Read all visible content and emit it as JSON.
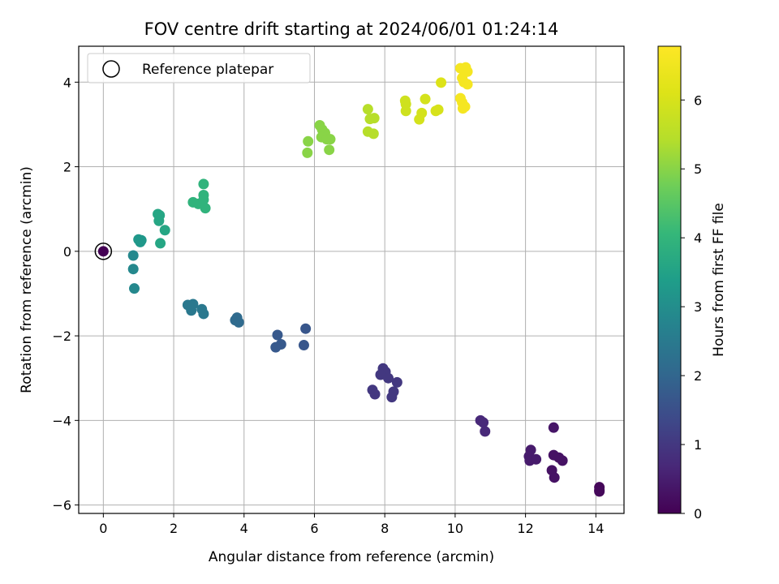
{
  "chart_data": {
    "type": "scatter",
    "title": "FOV centre drift starting at 2024/06/01 01:24:14",
    "xlabel": "Angular distance from reference (arcmin)",
    "ylabel": "Rotation from reference (arcmin)",
    "xlim": [
      -0.7,
      14.8
    ],
    "ylim": [
      -6.2,
      4.85
    ],
    "xticks": [
      0,
      2,
      4,
      6,
      8,
      10,
      12,
      14
    ],
    "yticks": [
      -6,
      -4,
      -2,
      0,
      2,
      4
    ],
    "grid": true,
    "legend": {
      "placement": "top-left",
      "entries": [
        "Reference platepar"
      ]
    },
    "colorbar": {
      "label": "Hours from first FF file",
      "range": [
        0,
        6.78
      ],
      "ticks": [
        0,
        1,
        2,
        3,
        4,
        5,
        6
      ],
      "colormap": "viridis"
    },
    "reference_point": {
      "x": 0,
      "y": 0,
      "marker": "open-circle"
    },
    "points": [
      {
        "x": 0,
        "y": 0,
        "c": 0.0
      },
      {
        "x": 14.1,
        "y": -5.58,
        "c": 0.1
      },
      {
        "x": 14.1,
        "y": -5.65,
        "c": 0.1
      },
      {
        "x": 14.1,
        "y": -5.68,
        "c": 0.12
      },
      {
        "x": 12.8,
        "y": -4.17,
        "c": 0.35
      },
      {
        "x": 12.75,
        "y": -5.18,
        "c": 0.3
      },
      {
        "x": 12.82,
        "y": -5.35,
        "c": 0.3
      },
      {
        "x": 12.8,
        "y": -4.82,
        "c": 0.3
      },
      {
        "x": 12.95,
        "y": -4.88,
        "c": 0.3
      },
      {
        "x": 13.05,
        "y": -4.95,
        "c": 0.3
      },
      {
        "x": 12.15,
        "y": -4.7,
        "c": 0.45
      },
      {
        "x": 12.1,
        "y": -4.85,
        "c": 0.45
      },
      {
        "x": 12.12,
        "y": -4.95,
        "c": 0.45
      },
      {
        "x": 12.3,
        "y": -4.92,
        "c": 0.45
      },
      {
        "x": 10.72,
        "y": -4.0,
        "c": 0.7
      },
      {
        "x": 10.8,
        "y": -4.05,
        "c": 0.7
      },
      {
        "x": 10.85,
        "y": -4.26,
        "c": 0.7
      },
      {
        "x": 7.95,
        "y": -2.77,
        "c": 1.0
      },
      {
        "x": 8.02,
        "y": -2.85,
        "c": 1.0
      },
      {
        "x": 7.88,
        "y": -2.92,
        "c": 1.0
      },
      {
        "x": 8.1,
        "y": -3.0,
        "c": 1.0
      },
      {
        "x": 8.35,
        "y": -3.1,
        "c": 1.0
      },
      {
        "x": 8.25,
        "y": -3.32,
        "c": 1.0
      },
      {
        "x": 8.2,
        "y": -3.45,
        "c": 1.0
      },
      {
        "x": 7.65,
        "y": -3.28,
        "c": 1.0
      },
      {
        "x": 7.72,
        "y": -3.38,
        "c": 1.0
      },
      {
        "x": 5.75,
        "y": -1.83,
        "c": 1.65
      },
      {
        "x": 5.7,
        "y": -2.22,
        "c": 1.65
      },
      {
        "x": 4.95,
        "y": -1.98,
        "c": 1.7
      },
      {
        "x": 5.05,
        "y": -2.2,
        "c": 1.7
      },
      {
        "x": 4.9,
        "y": -2.27,
        "c": 1.7
      },
      {
        "x": 3.8,
        "y": -1.57,
        "c": 2.1
      },
      {
        "x": 3.75,
        "y": -1.63,
        "c": 2.1
      },
      {
        "x": 3.85,
        "y": -1.68,
        "c": 2.1
      },
      {
        "x": 2.4,
        "y": -1.27,
        "c": 2.45
      },
      {
        "x": 2.55,
        "y": -1.25,
        "c": 2.45
      },
      {
        "x": 2.5,
        "y": -1.4,
        "c": 2.45
      },
      {
        "x": 2.8,
        "y": -1.37,
        "c": 2.45
      },
      {
        "x": 2.85,
        "y": -1.48,
        "c": 2.45
      },
      {
        "x": 0.85,
        "y": -0.1,
        "c": 2.85
      },
      {
        "x": 0.85,
        "y": -0.42,
        "c": 2.85
      },
      {
        "x": 0.88,
        "y": -0.88,
        "c": 2.85
      },
      {
        "x": 1.0,
        "y": 0.28,
        "c": 3.25
      },
      {
        "x": 1.08,
        "y": 0.26,
        "c": 3.25
      },
      {
        "x": 1.05,
        "y": 0.22,
        "c": 3.25
      },
      {
        "x": 1.55,
        "y": 0.88,
        "c": 3.6
      },
      {
        "x": 1.6,
        "y": 0.85,
        "c": 3.6
      },
      {
        "x": 1.58,
        "y": 0.72,
        "c": 3.6
      },
      {
        "x": 1.75,
        "y": 0.5,
        "c": 3.6
      },
      {
        "x": 1.62,
        "y": 0.19,
        "c": 3.6
      },
      {
        "x": 2.85,
        "y": 1.59,
        "c": 3.95
      },
      {
        "x": 2.85,
        "y": 1.33,
        "c": 3.95
      },
      {
        "x": 2.55,
        "y": 1.16,
        "c": 3.95
      },
      {
        "x": 2.7,
        "y": 1.12,
        "c": 3.95
      },
      {
        "x": 2.85,
        "y": 1.22,
        "c": 3.95
      },
      {
        "x": 2.9,
        "y": 1.02,
        "c": 3.95
      },
      {
        "x": 6.15,
        "y": 2.98,
        "c": 5.0
      },
      {
        "x": 6.22,
        "y": 2.88,
        "c": 5.0
      },
      {
        "x": 6.3,
        "y": 2.8,
        "c": 5.0
      },
      {
        "x": 6.2,
        "y": 2.7,
        "c": 5.0
      },
      {
        "x": 6.35,
        "y": 2.65,
        "c": 5.0
      },
      {
        "x": 6.45,
        "y": 2.65,
        "c": 5.0
      },
      {
        "x": 6.42,
        "y": 2.4,
        "c": 5.0
      },
      {
        "x": 5.82,
        "y": 2.6,
        "c": 5.0
      },
      {
        "x": 5.8,
        "y": 2.33,
        "c": 5.0
      },
      {
        "x": 7.52,
        "y": 3.36,
        "c": 5.45
      },
      {
        "x": 7.58,
        "y": 3.13,
        "c": 5.45
      },
      {
        "x": 7.7,
        "y": 3.15,
        "c": 5.45
      },
      {
        "x": 7.52,
        "y": 2.83,
        "c": 5.45
      },
      {
        "x": 7.68,
        "y": 2.78,
        "c": 5.45
      },
      {
        "x": 8.58,
        "y": 3.56,
        "c": 5.85
      },
      {
        "x": 8.6,
        "y": 3.48,
        "c": 5.85
      },
      {
        "x": 8.6,
        "y": 3.32,
        "c": 5.85
      },
      {
        "x": 9.15,
        "y": 3.6,
        "c": 5.95
      },
      {
        "x": 9.05,
        "y": 3.27,
        "c": 5.95
      },
      {
        "x": 8.98,
        "y": 3.12,
        "c": 5.95
      },
      {
        "x": 9.45,
        "y": 3.32,
        "c": 6.0
      },
      {
        "x": 9.52,
        "y": 3.35,
        "c": 6.0
      },
      {
        "x": 9.6,
        "y": 3.99,
        "c": 6.1
      },
      {
        "x": 10.15,
        "y": 4.33,
        "c": 6.6
      },
      {
        "x": 10.3,
        "y": 4.35,
        "c": 6.6
      },
      {
        "x": 10.35,
        "y": 4.25,
        "c": 6.6
      },
      {
        "x": 10.2,
        "y": 4.1,
        "c": 6.6
      },
      {
        "x": 10.25,
        "y": 4.0,
        "c": 6.6
      },
      {
        "x": 10.35,
        "y": 3.95,
        "c": 6.6
      },
      {
        "x": 10.15,
        "y": 3.62,
        "c": 6.6
      },
      {
        "x": 10.2,
        "y": 3.52,
        "c": 6.6
      },
      {
        "x": 10.28,
        "y": 3.42,
        "c": 6.6
      },
      {
        "x": 10.22,
        "y": 3.38,
        "c": 6.6
      }
    ]
  }
}
